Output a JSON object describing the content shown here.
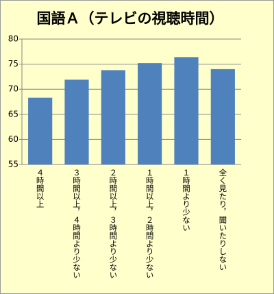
{
  "chart_data": {
    "type": "bar",
    "title": "国語Ａ（テレビの視聴時間）",
    "categories": [
      "４時間以上",
      "３時間以上，４時間より少ない",
      "２時間以上，３時間より少ない",
      "１時間以上，２時間より少ない",
      "１時間より少ない",
      "全く見たり，聞いたりしない"
    ],
    "values": [
      68.3,
      71.9,
      73.8,
      75.2,
      76.4,
      74.0
    ],
    "color": "#4f81bd",
    "ylim": [
      55,
      80
    ],
    "yticks": [
      55,
      60,
      65,
      70,
      75,
      80
    ],
    "grid": true
  }
}
